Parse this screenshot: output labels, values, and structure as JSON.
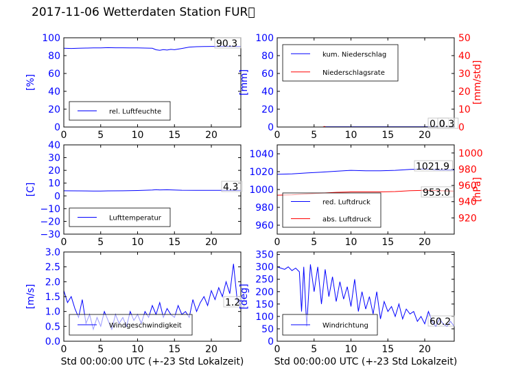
{
  "page_title": "2017-11-06 Wetterdaten Station FUR\u0000",
  "colors": {
    "blue": "#0000ff",
    "red": "#ff0000",
    "axis": "#000000"
  },
  "chart_data": [
    {
      "id": "humidity",
      "type": "line",
      "xlim": [
        0,
        24
      ],
      "xticks": [
        0,
        5,
        10,
        15,
        20
      ],
      "ylim": [
        0,
        100
      ],
      "yticks": [
        0,
        20,
        40,
        60,
        80,
        100
      ],
      "ylabel": "[%]",
      "ylabel_color": "#0000ff",
      "series": [
        {
          "name": "rel. Luftfeuchte",
          "color": "#0000ff",
          "x": [
            0,
            1,
            2,
            3,
            4,
            5,
            6,
            7,
            8,
            9,
            10,
            11,
            12,
            12.5,
            13,
            13.5,
            14,
            14.5,
            15,
            16,
            17,
            18,
            19,
            20,
            21,
            22,
            23,
            24
          ],
          "y": [
            88.2,
            88.0,
            88.3,
            88.5,
            88.6,
            88.7,
            88.9,
            88.8,
            88.8,
            88.7,
            88.6,
            88.5,
            88.2,
            86.5,
            86.0,
            86.8,
            86.2,
            87.0,
            86.6,
            88.0,
            89.5,
            90.0,
            90.2,
            90.3,
            90.3,
            90.4,
            90.3,
            90.3
          ]
        }
      ],
      "annotation": "90.3"
    },
    {
      "id": "precipitation",
      "type": "line",
      "xlim": [
        0,
        24
      ],
      "xticks": [
        0,
        5,
        10,
        15,
        20
      ],
      "ylim": [
        0,
        100
      ],
      "yticks": [
        0,
        20,
        40,
        60,
        80,
        100
      ],
      "ylabel": "[mm]",
      "ylabel_color": "#0000ff",
      "y2lim": [
        0,
        50
      ],
      "y2ticks": [
        0,
        10,
        20,
        30,
        40,
        50
      ],
      "y2label": "[mm/std]",
      "y2label_color": "#ff0000",
      "series": [
        {
          "name": "kum. Niederschlag",
          "color": "#0000ff",
          "axis": "left",
          "x": [
            0,
            6.3,
            6.5,
            24
          ],
          "y": [
            0,
            0,
            0.3,
            0.3
          ]
        },
        {
          "name": "Niederschlagsrate",
          "color": "#ff0000",
          "axis": "right",
          "x": [
            0,
            6.2,
            6.4,
            6.6,
            24
          ],
          "y": [
            0,
            0,
            0.3,
            0,
            0
          ]
        }
      ],
      "annotation": "0.0",
      "annotation2": "0.3"
    },
    {
      "id": "temperature",
      "type": "line",
      "xlim": [
        0,
        24
      ],
      "xticks": [
        0,
        5,
        10,
        15,
        20
      ],
      "ylim": [
        -30,
        40
      ],
      "yticks": [
        -30,
        -20,
        -10,
        0,
        10,
        20,
        30,
        40
      ],
      "ylabel": "[C]",
      "ylabel_color": "#0000ff",
      "series": [
        {
          "name": "Lufttemperatur",
          "color": "#0000ff",
          "x": [
            0,
            2,
            4,
            5,
            6,
            8,
            10,
            11,
            12,
            12.5,
            13,
            14,
            15,
            16,
            18,
            20,
            22,
            24
          ],
          "y": [
            4.0,
            3.9,
            3.8,
            3.8,
            3.9,
            4.0,
            4.2,
            4.4,
            4.6,
            4.9,
            4.7,
            4.8,
            4.6,
            4.4,
            4.3,
            4.3,
            4.3,
            4.3
          ]
        }
      ],
      "annotation": "4.3"
    },
    {
      "id": "pressure",
      "type": "line",
      "xlim": [
        0,
        24
      ],
      "xticks": [
        0,
        5,
        10,
        15,
        20
      ],
      "ylim": [
        950,
        1050
      ],
      "yticks": [
        960,
        980,
        1000,
        1020,
        1040
      ],
      "ylabel": "",
      "y2lim": [
        900,
        1010
      ],
      "y2ticks": [
        920,
        940,
        960,
        980,
        1000
      ],
      "y2label": "[hPa]",
      "y2label_color": "#ff0000",
      "series": [
        {
          "name": "red. Luftdruck",
          "color": "#0000ff",
          "axis": "left",
          "x": [
            0,
            2,
            4,
            6,
            8,
            10,
            12,
            14,
            16,
            18,
            20,
            22,
            24
          ],
          "y": [
            1017.0,
            1017.5,
            1018.5,
            1019.5,
            1020.5,
            1021.5,
            1021.0,
            1021.0,
            1021.5,
            1022.5,
            1023.0,
            1022.0,
            1021.9
          ]
        },
        {
          "name": "abs. Luftdruck",
          "color": "#ff0000",
          "axis": "right",
          "x": [
            0,
            2,
            4,
            6,
            8,
            10,
            12,
            14,
            16,
            18,
            20,
            22,
            24
          ],
          "y": [
            948.0,
            948.5,
            949.5,
            950.5,
            951.5,
            952.0,
            952.0,
            952.0,
            952.5,
            953.5,
            954.0,
            953.5,
            953.0
          ]
        }
      ],
      "annotation": "1021.9",
      "annotation2": "953.0"
    },
    {
      "id": "windspeed",
      "type": "line",
      "xlim": [
        0,
        24
      ],
      "xticks": [
        0,
        5,
        10,
        15,
        20
      ],
      "ylim": [
        0,
        3.0
      ],
      "yticks": [
        0.0,
        0.5,
        1.0,
        1.5,
        2.0,
        2.5,
        3.0
      ],
      "ylabel": "[m/s]",
      "ylabel_color": "#0000ff",
      "xlabel": "Std 00:00:00 UTC (+-23 Std Lokalzeit)",
      "series": [
        {
          "name": "Windgeschwindigkeit",
          "color": "#0000ff",
          "x": [
            0,
            0.5,
            1,
            1.5,
            2,
            2.5,
            3,
            3.5,
            4,
            4.5,
            5,
            5.5,
            6,
            6.5,
            7,
            7.5,
            8,
            8.5,
            9,
            9.5,
            10,
            10.5,
            11,
            11.5,
            12,
            12.5,
            13,
            13.5,
            14,
            14.5,
            15,
            15.5,
            16,
            16.5,
            17,
            17.5,
            18,
            18.5,
            19,
            19.5,
            20,
            20.5,
            21,
            21.5,
            22,
            22.5,
            23,
            23.5,
            24
          ],
          "y": [
            1.7,
            1.3,
            1.5,
            1.1,
            0.8,
            1.4,
            0.6,
            0.9,
            0.4,
            0.8,
            0.5,
            1.0,
            0.7,
            0.4,
            0.9,
            0.6,
            0.8,
            0.5,
            1.0,
            0.7,
            0.9,
            0.6,
            1.0,
            0.8,
            1.2,
            0.9,
            1.3,
            0.8,
            1.1,
            0.9,
            0.8,
            1.2,
            0.9,
            1.0,
            0.8,
            1.4,
            1.0,
            1.3,
            1.5,
            1.2,
            1.7,
            1.4,
            1.8,
            1.5,
            2.0,
            1.6,
            2.6,
            1.4,
            1.2
          ]
        }
      ],
      "annotation": "1.2"
    },
    {
      "id": "winddirection",
      "type": "line",
      "xlim": [
        0,
        24
      ],
      "xticks": [
        0,
        5,
        10,
        15,
        20
      ],
      "ylim": [
        0,
        360
      ],
      "yticks": [
        0,
        50,
        100,
        150,
        200,
        250,
        300,
        350
      ],
      "ylabel": "[deg]",
      "ylabel_color": "#0000ff",
      "xlabel": "Std 00:00:00 UTC (+-23 Std Lokalzeit)",
      "series": [
        {
          "name": "Windrichtung",
          "color": "#0000ff",
          "x": [
            0,
            0.5,
            1,
            1.5,
            2,
            2.5,
            3,
            3.3,
            3.6,
            4,
            4.5,
            5,
            5.5,
            6,
            6.5,
            7,
            7.5,
            8,
            8.5,
            9,
            9.5,
            10,
            10.5,
            11,
            11.5,
            12,
            12.5,
            13,
            13.5,
            14,
            14.5,
            15,
            15.5,
            16,
            16.5,
            17,
            17.5,
            18,
            18.5,
            19,
            19.5,
            20,
            20.5,
            21,
            21.5,
            22,
            22.5,
            23,
            23.5,
            24
          ],
          "y": [
            300,
            295,
            290,
            300,
            285,
            295,
            280,
            120,
            300,
            60,
            310,
            200,
            300,
            150,
            290,
            180,
            260,
            160,
            240,
            170,
            220,
            140,
            250,
            120,
            200,
            130,
            180,
            110,
            200,
            90,
            160,
            120,
            140,
            100,
            150,
            90,
            130,
            110,
            120,
            80,
            100,
            70,
            120,
            80,
            60,
            90,
            70,
            60,
            80,
            60.2
          ]
        }
      ],
      "annotation": "60.2"
    }
  ]
}
